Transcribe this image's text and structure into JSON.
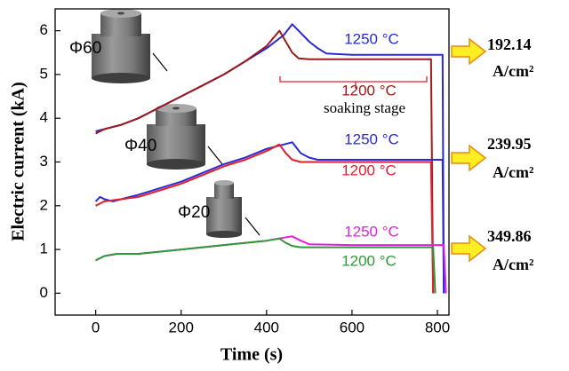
{
  "chart_data": {
    "type": "line",
    "xlabel": "Time (s)",
    "ylabel": "Electric current  (kA)",
    "xlim": [
      -95,
      827
    ],
    "ylim": [
      -0.5,
      6.5
    ],
    "xticks": [
      0,
      200,
      400,
      600,
      800
    ],
    "yticks": [
      0,
      1,
      2,
      3,
      4,
      5,
      6
    ],
    "series": [
      {
        "name": "1250 °C",
        "color": "#2a2ad6",
        "x": [
          0,
          20,
          60,
          100,
          150,
          200,
          250,
          300,
          350,
          400,
          440,
          460,
          480,
          500,
          520,
          540,
          600,
          700,
          800,
          812,
          815
        ],
        "values": [
          3.7,
          3.75,
          3.85,
          4.0,
          4.25,
          4.5,
          4.75,
          5.0,
          5.3,
          5.6,
          5.9,
          6.15,
          5.95,
          5.75,
          5.6,
          5.48,
          5.45,
          5.45,
          5.45,
          5.45,
          0
        ]
      },
      {
        "name": "1200 °C",
        "color": "#9b1b1b",
        "x": [
          0,
          20,
          60,
          100,
          150,
          200,
          250,
          300,
          350,
          400,
          430,
          445,
          460,
          475,
          500,
          600,
          700,
          785,
          790
        ],
        "values": [
          3.65,
          3.75,
          3.85,
          4.0,
          4.25,
          4.5,
          4.75,
          5.0,
          5.3,
          5.65,
          6.0,
          5.75,
          5.5,
          5.37,
          5.35,
          5.35,
          5.35,
          5.35,
          0
        ]
      },
      {
        "name": "1250 °C",
        "color": "#2a2ad6",
        "x": [
          0,
          10,
          20,
          40,
          60,
          100,
          150,
          200,
          250,
          300,
          350,
          400,
          440,
          460,
          480,
          500,
          520,
          600,
          700,
          800,
          812,
          815
        ],
        "values": [
          2.1,
          2.2,
          2.15,
          2.1,
          2.15,
          2.25,
          2.4,
          2.55,
          2.75,
          2.95,
          3.1,
          3.3,
          3.4,
          3.45,
          3.2,
          3.1,
          3.05,
          3.05,
          3.05,
          3.05,
          3.05,
          0
        ]
      },
      {
        "name": "1200 °C",
        "color": "#e0202a",
        "x": [
          0,
          20,
          60,
          100,
          150,
          200,
          250,
          300,
          350,
          400,
          430,
          445,
          460,
          480,
          500,
          600,
          700,
          785,
          790
        ],
        "values": [
          2.0,
          2.1,
          2.15,
          2.2,
          2.35,
          2.5,
          2.7,
          2.9,
          3.05,
          3.25,
          3.4,
          3.2,
          3.05,
          3.0,
          3.0,
          3.0,
          3.0,
          3.0,
          0
        ]
      },
      {
        "name": "1250 °C",
        "color": "#e020e0",
        "x": [
          0,
          20,
          50,
          100,
          200,
          300,
          400,
          440,
          460,
          480,
          500,
          600,
          700,
          815,
          820
        ],
        "values": [
          0.75,
          0.85,
          0.9,
          0.9,
          1.0,
          1.1,
          1.2,
          1.27,
          1.3,
          1.2,
          1.12,
          1.1,
          1.1,
          1.1,
          0
        ]
      },
      {
        "name": "1200 °C",
        "color": "#2e9a3a",
        "x": [
          0,
          20,
          50,
          100,
          200,
          300,
          400,
          430,
          445,
          460,
          480,
          500,
          600,
          700,
          790,
          795
        ],
        "values": [
          0.75,
          0.85,
          0.9,
          0.9,
          1.0,
          1.1,
          1.2,
          1.25,
          1.15,
          1.08,
          1.05,
          1.05,
          1.05,
          1.05,
          1.05,
          0
        ]
      }
    ],
    "annotations": {
      "sizes": [
        "Φ60",
        "Φ40",
        "Φ20"
      ],
      "soaking": "soaking stage",
      "current_densities": [
        192.14,
        239.95,
        349.86
      ],
      "density_unit": "A/cm²"
    }
  }
}
